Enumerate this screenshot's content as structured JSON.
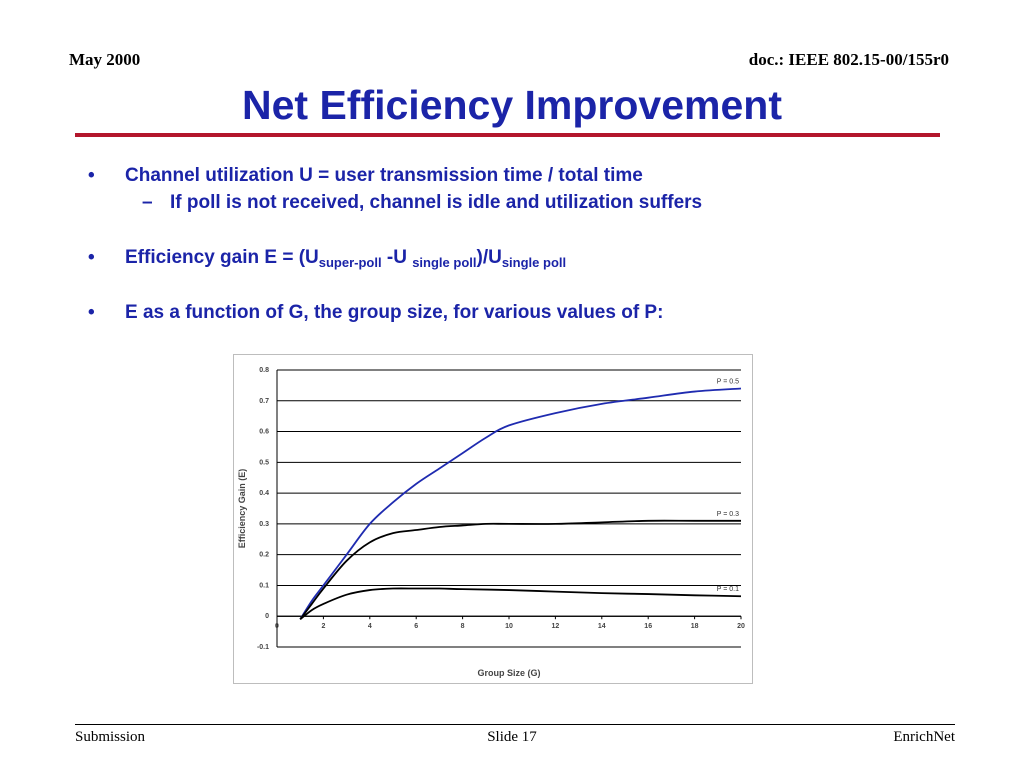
{
  "header": {
    "date": "May 2000",
    "doc": "doc.: IEEE 802.15-00/155r0"
  },
  "title": "Net Efficiency Improvement",
  "bullets": {
    "b1": "Channel utilization  U = user transmission time / total time",
    "b1_sub": "If poll is not received, channel is idle and utilization suffers",
    "b2": {
      "prefix": "Efficiency gain  E = (U",
      "sub1": "super-poll",
      "mid": " -U ",
      "sub2": "single poll",
      "close": ")/U",
      "sub3": "single poll"
    },
    "b3": "E as a function of G, the group size, for various values of P:"
  },
  "bullet_glyph": "•",
  "dash_glyph": "–",
  "chart_data": {
    "type": "line",
    "xlabel": "Group Size (G)",
    "ylabel": "Efficiency Gain (E)",
    "xlim": [
      0,
      20
    ],
    "ylim": [
      -0.1,
      0.8
    ],
    "xticks": [
      0,
      2,
      4,
      6,
      8,
      10,
      12,
      14,
      16,
      18,
      20
    ],
    "yticks": [
      -0.1,
      0,
      0.1,
      0.2,
      0.3,
      0.4,
      0.5,
      0.6,
      0.7,
      0.8
    ],
    "ytick_labels": [
      "-0.1",
      "0",
      "0.1",
      "0.2",
      "0.3",
      "0.4",
      "0.5",
      "0.6",
      "0.7",
      "0.8"
    ],
    "grid": "horizontal",
    "series": [
      {
        "name": "P = 0.5",
        "color": "#1f2bb0",
        "x": [
          1,
          1.5,
          2,
          3,
          4,
          5,
          6,
          7,
          8,
          9,
          10,
          12,
          14,
          16,
          18,
          20
        ],
        "y": [
          -0.01,
          0.05,
          0.1,
          0.2,
          0.3,
          0.37,
          0.43,
          0.48,
          0.53,
          0.58,
          0.62,
          0.66,
          0.69,
          0.71,
          0.73,
          0.74
        ]
      },
      {
        "name": "P = 0.3",
        "color": "#000000",
        "x": [
          1,
          1.5,
          2,
          3,
          4,
          5,
          6,
          7,
          8,
          9,
          10,
          12,
          14,
          16,
          18,
          20
        ],
        "y": [
          -0.01,
          0.04,
          0.09,
          0.18,
          0.24,
          0.27,
          0.28,
          0.29,
          0.295,
          0.3,
          0.3,
          0.3,
          0.305,
          0.31,
          0.31,
          0.31
        ]
      },
      {
        "name": "P = 0.1",
        "color": "#000000",
        "x": [
          1,
          1.5,
          2,
          3,
          4,
          5,
          6,
          7,
          8,
          10,
          12,
          14,
          16,
          18,
          20
        ],
        "y": [
          -0.01,
          0.02,
          0.04,
          0.07,
          0.085,
          0.09,
          0.09,
          0.09,
          0.088,
          0.085,
          0.08,
          0.075,
          0.072,
          0.068,
          0.065
        ]
      }
    ]
  },
  "footer": {
    "left": "Submission",
    "center": "Slide 17",
    "right": "EnrichNet"
  }
}
